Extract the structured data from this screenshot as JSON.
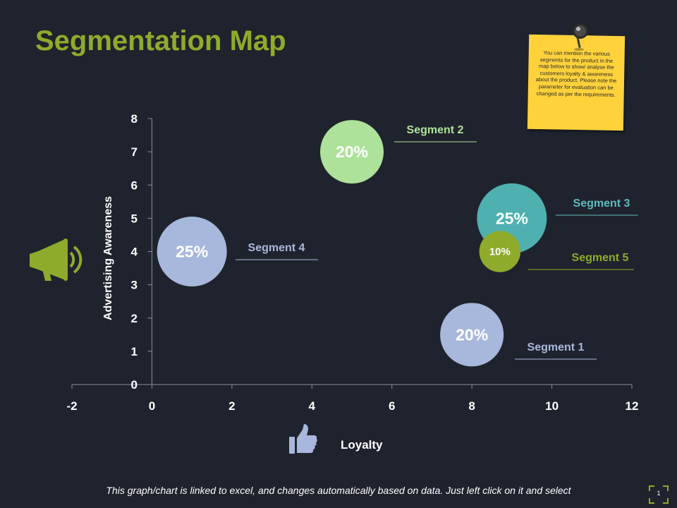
{
  "title": "Segmentation Map",
  "note": "You can mention the various segments for the product in the map below to show/ analyse the customers loyalty & awareness about the product. Please note the parameter for evaluation can be changed as per the requirements.",
  "footer": "This graph/chart is linked to excel, and changes automatically based on data. Just left click on it and select",
  "page_number": "1",
  "icons": {
    "megaphone": "megaphone-icon",
    "thumbs_up": "thumbs-up-icon",
    "pin": "pushpin-icon"
  },
  "colors": {
    "title": "#8fab2b",
    "background": "#1f232d",
    "note": "#ffd23b"
  },
  "chart_data": {
    "type": "scatter",
    "xlabel": "Loyalty",
    "ylabel": "Advertising Awareness",
    "xlim": [
      -2,
      12
    ],
    "ylim": [
      0,
      8
    ],
    "xticks": [
      -2,
      0,
      2,
      4,
      6,
      8,
      10,
      12
    ],
    "yticks": [
      0,
      1,
      2,
      3,
      4,
      5,
      6,
      7,
      8
    ],
    "grid": false,
    "series": [
      {
        "name": "Segment 1",
        "x": 8,
        "y": 1.5,
        "value": "20%",
        "color": "#a8b8dc",
        "text_color": "#ffffff",
        "size": 1.0,
        "label_color": "#a8b8dc"
      },
      {
        "name": "Segment 2",
        "x": 5,
        "y": 7,
        "value": "20%",
        "color": "#aee29a",
        "text_color": "#ffffff",
        "size": 1.0,
        "label_color": "#aee29a"
      },
      {
        "name": "Segment 3",
        "x": 9,
        "y": 5,
        "value": "25%",
        "color": "#4fb0b0",
        "text_color": "#ffffff",
        "size": 1.1,
        "label_color": "#5cbcbc"
      },
      {
        "name": "Segment 4",
        "x": 1,
        "y": 4,
        "value": "25%",
        "color": "#a8b8dc",
        "text_color": "#ffffff",
        "size": 1.1,
        "label_color": "#a8b8dc"
      },
      {
        "name": "Segment 5",
        "x": 8.7,
        "y": 4,
        "value": "10%",
        "color": "#8fab2b",
        "text_color": "#ffffff",
        "size": 0.65,
        "label_color": "#8fab2b"
      }
    ]
  }
}
